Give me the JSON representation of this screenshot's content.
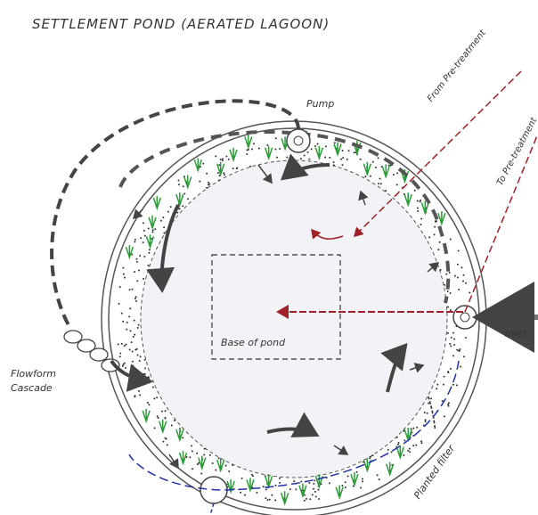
{
  "title": "SETTLEMENT POND (AERATED LAGOON)",
  "labels": {
    "pump": "Pump",
    "from_pretreatment": "From Pre-treatment",
    "to_pretreatment": "To Pre-treatment",
    "inlet": "Inlet",
    "flowform": "Flowform Cascade",
    "base": "Base of pond",
    "planted_filter": "Planted filter"
  }
}
